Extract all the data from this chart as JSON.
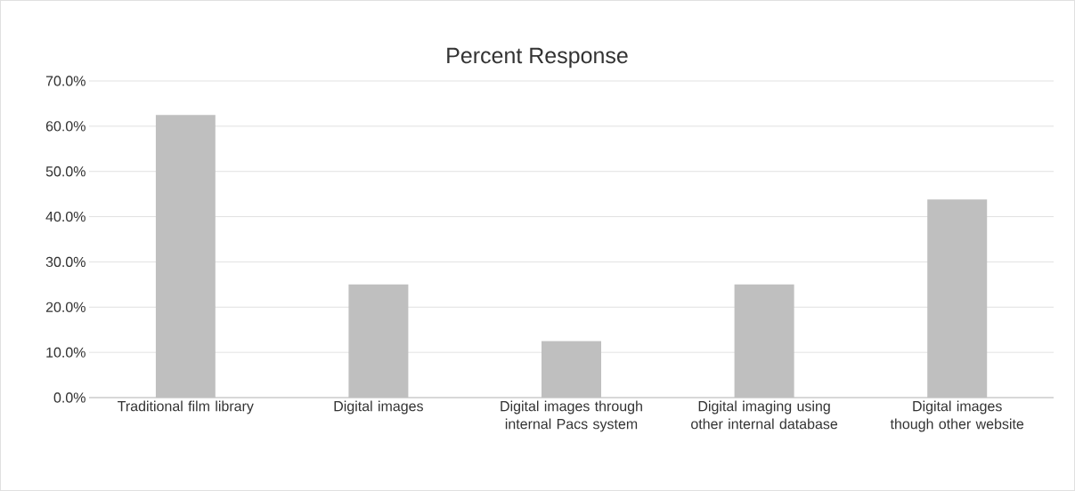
{
  "chart_data": {
    "type": "bar",
    "title": "Percent Response",
    "categories": [
      "Traditional film library",
      "Digital images",
      "Digital images through internal Pacs system",
      "Digital imaging using other internal database",
      "Digital images though other website"
    ],
    "values": [
      62.5,
      25,
      12.5,
      25,
      43.8
    ],
    "color": "#bfbfbf",
    "ylim": [
      0,
      70
    ],
    "yticks": [
      {
        "value": 0,
        "label": "0.0%"
      },
      {
        "value": 10,
        "label": "10.0%"
      },
      {
        "value": 20,
        "label": "20.0%"
      },
      {
        "value": 30,
        "label": "30.0%"
      },
      {
        "value": 40,
        "label": "40.0%"
      },
      {
        "value": 50,
        "label": "50.0%"
      },
      {
        "value": 60,
        "label": "60.0%"
      },
      {
        "value": 70,
        "label": "70.0%"
      }
    ],
    "grid": "y"
  }
}
